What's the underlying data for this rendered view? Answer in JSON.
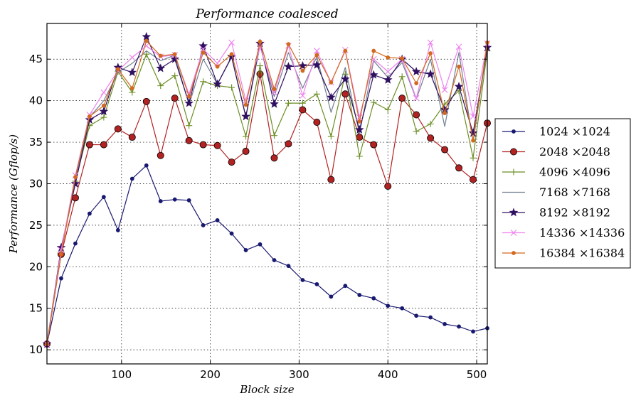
{
  "chart_data": {
    "type": "line",
    "title": "Performance coalesced",
    "xlabel": "Block size",
    "ylabel": "Performance (Gflop/s)",
    "xlim": [
      16,
      512
    ],
    "ylim": [
      8.3,
      49.3
    ],
    "xticks": [
      100,
      200,
      300,
      400,
      500
    ],
    "yticks": [
      10,
      15,
      20,
      25,
      30,
      35,
      40,
      45
    ],
    "grid": true,
    "legend_position": "right, outside the plot",
    "x": [
      16,
      32,
      48,
      64,
      80,
      96,
      112,
      128,
      144,
      160,
      176,
      192,
      208,
      224,
      240,
      256,
      272,
      288,
      304,
      320,
      336,
      352,
      368,
      384,
      400,
      416,
      432,
      448,
      464,
      480,
      496,
      512
    ],
    "series": [
      {
        "name": "1024 ×1024",
        "color": "#191970",
        "marker": "dot",
        "values": [
          10.7,
          18.6,
          22.8,
          26.4,
          28.4,
          24.4,
          30.6,
          32.2,
          27.9,
          28.1,
          28.0,
          25.0,
          25.6,
          24.0,
          22.0,
          22.7,
          20.8,
          20.1,
          18.4,
          17.9,
          16.4,
          17.7,
          16.6,
          16.2,
          15.3,
          15.0,
          14.1,
          13.9,
          13.1,
          12.8,
          12.2,
          12.6
        ]
      },
      {
        "name": "2048 ×2048",
        "color": "#b22222",
        "marker": "circle",
        "values": [
          10.7,
          21.5,
          28.3,
          34.7,
          34.7,
          36.6,
          35.6,
          39.9,
          33.4,
          40.3,
          35.2,
          34.7,
          34.6,
          32.6,
          33.9,
          43.2,
          33.1,
          34.8,
          38.9,
          37.4,
          30.5,
          40.8,
          35.6,
          34.7,
          29.7,
          40.3,
          38.3,
          35.5,
          34.1,
          31.9,
          30.5,
          37.3
        ]
      },
      {
        "name": "4096 ×4096",
        "color": "#6b8e23",
        "marker": "plus",
        "values": [
          10.7,
          21.8,
          30.3,
          37.0,
          38.0,
          43.5,
          41.0,
          45.6,
          41.8,
          43.0,
          37.0,
          42.3,
          41.8,
          41.6,
          35.7,
          44.2,
          35.8,
          39.7,
          39.7,
          40.8,
          35.7,
          43.2,
          33.3,
          39.8,
          38.9,
          42.9,
          36.3,
          37.2,
          39.6,
          41.2,
          33.1,
          46.0
        ]
      },
      {
        "name": "7168 ×7168",
        "color": "#708090",
        "marker": "none",
        "values": [
          10.7,
          22.0,
          30.4,
          38.0,
          40.0,
          43.4,
          44.5,
          46.0,
          44.8,
          45.5,
          39.5,
          45.0,
          42.0,
          45.2,
          38.0,
          46.6,
          40.5,
          45.8,
          41.5,
          45.3,
          38.6,
          44.0,
          36.0,
          44.8,
          42.8,
          44.6,
          40.2,
          45.0,
          36.9,
          45.8,
          35.0,
          46.6
        ]
      },
      {
        "name": "8192 ×8192",
        "color": "#301060",
        "marker": "star",
        "values": [
          10.7,
          22.3,
          30.0,
          37.7,
          38.7,
          44.0,
          43.4,
          47.7,
          43.9,
          45.0,
          39.7,
          46.6,
          42.0,
          45.3,
          38.1,
          46.9,
          39.6,
          44.1,
          44.2,
          44.3,
          40.4,
          42.6,
          36.5,
          43.1,
          42.5,
          45.0,
          43.5,
          43.2,
          38.9,
          41.7,
          36.1,
          46.4
        ]
      },
      {
        "name": "14336 ×14336",
        "color": "#ee82ee",
        "marker": "cross",
        "values": [
          10.7,
          22.0,
          31.0,
          38.3,
          41.0,
          43.6,
          45.2,
          46.6,
          45.3,
          45.5,
          40.8,
          46.2,
          44.5,
          47.0,
          40.0,
          46.5,
          41.0,
          46.6,
          40.6,
          46.0,
          42.2,
          46.1,
          38.0,
          45.0,
          43.5,
          45.0,
          40.3,
          47.0,
          41.3,
          46.5,
          38.1,
          46.9
        ]
      },
      {
        "name": "16384 ×16384",
        "color": "#d2691e",
        "marker": "dot",
        "values": [
          10.7,
          21.5,
          30.8,
          38.1,
          39.4,
          43.8,
          41.5,
          47.2,
          45.4,
          45.6,
          40.5,
          45.8,
          44.1,
          45.6,
          39.5,
          47.1,
          41.4,
          46.8,
          43.6,
          45.5,
          42.2,
          46.0,
          37.5,
          46.0,
          45.2,
          45.1,
          42.1,
          45.7,
          38.5,
          44.1,
          35.2,
          47.0
        ]
      }
    ]
  }
}
